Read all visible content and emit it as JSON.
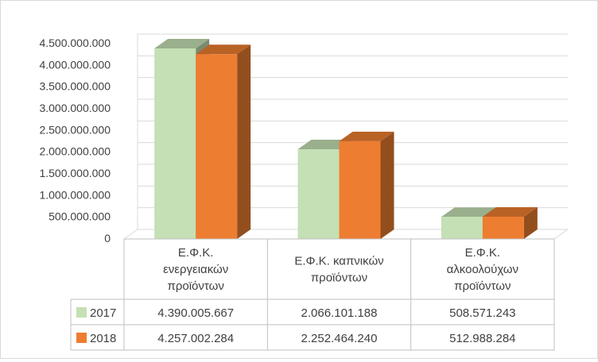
{
  "chart_data": {
    "type": "bar",
    "title": "",
    "xlabel": "",
    "ylabel": "",
    "ylim": [
      0,
      4500000000
    ],
    "yticks": [
      0,
      500000000,
      1000000000,
      1500000000,
      2000000000,
      2500000000,
      3000000000,
      3500000000,
      4000000000,
      4500000000
    ],
    "ytick_labels": [
      "0",
      "500.000.000",
      "1.000.000.000",
      "1.500.000.000",
      "2.000.000.000",
      "2.500.000.000",
      "3.000.000.000",
      "3.500.000.000",
      "4.000.000.000",
      "4.500.000.000"
    ],
    "grid": true,
    "legend": "data-table",
    "categories": [
      [
        "Ε.Φ.Κ.",
        "ενεργειακών",
        "προϊόντων"
      ],
      [
        "Ε.Φ.Κ. καπνικών",
        "προϊόντων"
      ],
      [
        "Ε.Φ.Κ.",
        "αλκοολούχων",
        "προϊόντων"
      ]
    ],
    "series": [
      {
        "name": "2017",
        "color": "#c5e0b4",
        "values": [
          4390005667,
          2066101188,
          508571243
        ],
        "value_labels": [
          "4.390.005.667",
          "2.066.101.188",
          "508.571.243"
        ]
      },
      {
        "name": "2018",
        "color": "#ed7d31",
        "values": [
          4257002284,
          2252464240,
          512988284
        ],
        "value_labels": [
          "4.257.002.284",
          "2.252.464.240",
          "512.988.284"
        ]
      }
    ]
  }
}
